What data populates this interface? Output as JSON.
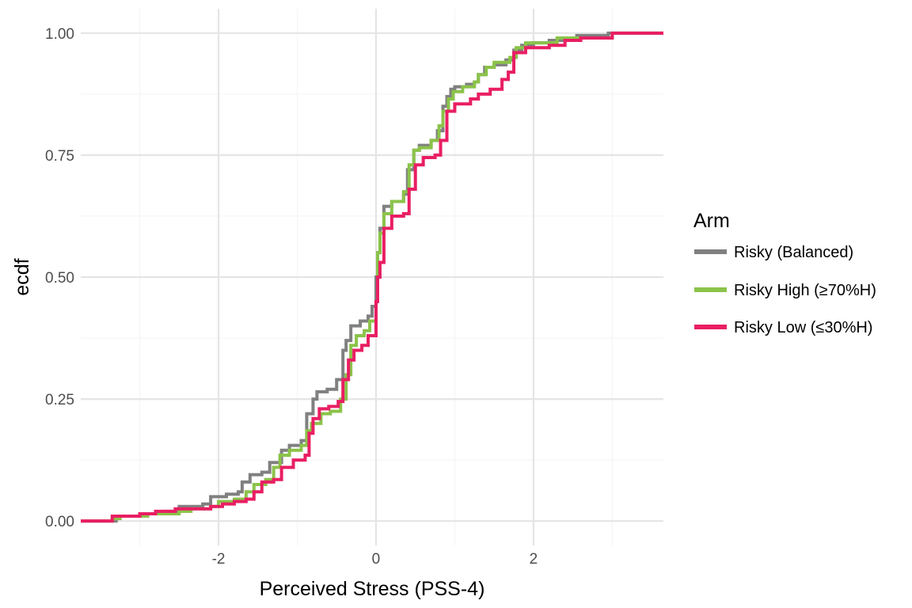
{
  "chart_data": {
    "type": "line",
    "subtype": "ecdf-step",
    "title": "",
    "xlabel": "Perceived Stress (PSS-4)",
    "ylabel": "ecdf",
    "xlim": [
      -3.75,
      3.65
    ],
    "ylim": [
      -0.05,
      1.05
    ],
    "x_ticks": [
      -2,
      0,
      2
    ],
    "x_tick_labels": [
      "-2",
      "0",
      "2"
    ],
    "y_ticks": [
      0,
      0.25,
      0.5,
      0.75,
      1
    ],
    "y_tick_labels": [
      "0.00",
      "0.25",
      "0.50",
      "0.75",
      "1.00"
    ],
    "x_minor_ticks": [
      -3,
      -1,
      1,
      3
    ],
    "y_minor_ticks": [
      0.125,
      0.375,
      0.625,
      0.875
    ],
    "grid": true,
    "legend": {
      "title": "Arm",
      "position": "right"
    },
    "series": [
      {
        "name": "Risky (Balanced)",
        "color": "#808080",
        "points": [
          [
            -3.75,
            0.0
          ],
          [
            -3.4,
            0.0
          ],
          [
            -3.3,
            0.01
          ],
          [
            -3.0,
            0.015
          ],
          [
            -2.7,
            0.02
          ],
          [
            -2.5,
            0.03
          ],
          [
            -2.2,
            0.035
          ],
          [
            -2.1,
            0.05
          ],
          [
            -1.9,
            0.055
          ],
          [
            -1.75,
            0.06
          ],
          [
            -1.7,
            0.08
          ],
          [
            -1.6,
            0.095
          ],
          [
            -1.45,
            0.1
          ],
          [
            -1.35,
            0.12
          ],
          [
            -1.2,
            0.145
          ],
          [
            -1.1,
            0.155
          ],
          [
            -0.95,
            0.165
          ],
          [
            -0.88,
            0.22
          ],
          [
            -0.8,
            0.25
          ],
          [
            -0.75,
            0.265
          ],
          [
            -0.62,
            0.27
          ],
          [
            -0.5,
            0.29
          ],
          [
            -0.42,
            0.35
          ],
          [
            -0.38,
            0.37
          ],
          [
            -0.32,
            0.4
          ],
          [
            -0.2,
            0.41
          ],
          [
            -0.1,
            0.42
          ],
          [
            -0.05,
            0.44
          ],
          [
            0.0,
            0.5
          ],
          [
            0.02,
            0.55
          ],
          [
            0.05,
            0.6
          ],
          [
            0.1,
            0.645
          ],
          [
            0.2,
            0.655
          ],
          [
            0.35,
            0.67
          ],
          [
            0.4,
            0.72
          ],
          [
            0.48,
            0.76
          ],
          [
            0.55,
            0.77
          ],
          [
            0.7,
            0.78
          ],
          [
            0.78,
            0.8
          ],
          [
            0.85,
            0.85
          ],
          [
            0.9,
            0.87
          ],
          [
            0.95,
            0.885
          ],
          [
            1.0,
            0.89
          ],
          [
            1.15,
            0.895
          ],
          [
            1.25,
            0.9
          ],
          [
            1.3,
            0.915
          ],
          [
            1.38,
            0.93
          ],
          [
            1.5,
            0.935
          ],
          [
            1.65,
            0.945
          ],
          [
            1.75,
            0.965
          ],
          [
            1.85,
            0.975
          ],
          [
            2.0,
            0.98
          ],
          [
            2.2,
            0.985
          ],
          [
            2.55,
            0.995
          ],
          [
            2.95,
            1.0
          ],
          [
            3.65,
            1.0
          ]
        ]
      },
      {
        "name": "Risky High (≥70%H)",
        "color": "#8bc34a",
        "points": [
          [
            -3.75,
            0.0
          ],
          [
            -3.4,
            0.0
          ],
          [
            -3.35,
            0.005
          ],
          [
            -3.25,
            0.01
          ],
          [
            -2.9,
            0.015
          ],
          [
            -2.5,
            0.02
          ],
          [
            -2.35,
            0.025
          ],
          [
            -2.1,
            0.03
          ],
          [
            -2.0,
            0.04
          ],
          [
            -1.8,
            0.045
          ],
          [
            -1.65,
            0.06
          ],
          [
            -1.55,
            0.075
          ],
          [
            -1.4,
            0.085
          ],
          [
            -1.3,
            0.11
          ],
          [
            -1.22,
            0.135
          ],
          [
            -1.1,
            0.145
          ],
          [
            -0.95,
            0.155
          ],
          [
            -0.88,
            0.185
          ],
          [
            -0.82,
            0.2
          ],
          [
            -0.7,
            0.22
          ],
          [
            -0.58,
            0.225
          ],
          [
            -0.45,
            0.25
          ],
          [
            -0.38,
            0.3
          ],
          [
            -0.32,
            0.36
          ],
          [
            -0.25,
            0.38
          ],
          [
            -0.15,
            0.39
          ],
          [
            -0.08,
            0.41
          ],
          [
            0.0,
            0.45
          ],
          [
            0.02,
            0.55
          ],
          [
            0.05,
            0.59
          ],
          [
            0.1,
            0.63
          ],
          [
            0.2,
            0.655
          ],
          [
            0.35,
            0.675
          ],
          [
            0.42,
            0.73
          ],
          [
            0.48,
            0.76
          ],
          [
            0.55,
            0.765
          ],
          [
            0.7,
            0.78
          ],
          [
            0.8,
            0.81
          ],
          [
            0.85,
            0.84
          ],
          [
            0.92,
            0.865
          ],
          [
            0.98,
            0.88
          ],
          [
            1.1,
            0.89
          ],
          [
            1.25,
            0.9
          ],
          [
            1.3,
            0.915
          ],
          [
            1.4,
            0.93
          ],
          [
            1.5,
            0.94
          ],
          [
            1.7,
            0.95
          ],
          [
            1.78,
            0.97
          ],
          [
            1.9,
            0.98
          ],
          [
            2.3,
            0.99
          ],
          [
            3.0,
            1.0
          ],
          [
            3.65,
            1.0
          ]
        ]
      },
      {
        "name": "Risky Low (≤30%H)",
        "color": "#e91e63",
        "points": [
          [
            -3.75,
            0.0
          ],
          [
            -3.45,
            0.0
          ],
          [
            -3.35,
            0.01
          ],
          [
            -3.0,
            0.015
          ],
          [
            -2.8,
            0.02
          ],
          [
            -2.55,
            0.025
          ],
          [
            -2.1,
            0.03
          ],
          [
            -1.95,
            0.035
          ],
          [
            -1.8,
            0.04
          ],
          [
            -1.65,
            0.045
          ],
          [
            -1.55,
            0.06
          ],
          [
            -1.45,
            0.08
          ],
          [
            -1.3,
            0.085
          ],
          [
            -1.2,
            0.11
          ],
          [
            -1.05,
            0.125
          ],
          [
            -0.9,
            0.135
          ],
          [
            -0.85,
            0.18
          ],
          [
            -0.8,
            0.21
          ],
          [
            -0.72,
            0.23
          ],
          [
            -0.6,
            0.235
          ],
          [
            -0.48,
            0.245
          ],
          [
            -0.42,
            0.29
          ],
          [
            -0.35,
            0.33
          ],
          [
            -0.28,
            0.35
          ],
          [
            -0.18,
            0.36
          ],
          [
            -0.1,
            0.38
          ],
          [
            0.0,
            0.45
          ],
          [
            0.02,
            0.5
          ],
          [
            0.05,
            0.53
          ],
          [
            0.1,
            0.6
          ],
          [
            0.2,
            0.625
          ],
          [
            0.35,
            0.63
          ],
          [
            0.42,
            0.68
          ],
          [
            0.5,
            0.73
          ],
          [
            0.6,
            0.745
          ],
          [
            0.75,
            0.75
          ],
          [
            0.82,
            0.78
          ],
          [
            0.9,
            0.84
          ],
          [
            1.0,
            0.855
          ],
          [
            1.2,
            0.865
          ],
          [
            1.3,
            0.875
          ],
          [
            1.45,
            0.885
          ],
          [
            1.6,
            0.905
          ],
          [
            1.68,
            0.92
          ],
          [
            1.75,
            0.96
          ],
          [
            1.9,
            0.97
          ],
          [
            2.2,
            0.975
          ],
          [
            2.4,
            0.985
          ],
          [
            2.6,
            0.99
          ],
          [
            3.0,
            1.0
          ],
          [
            3.65,
            1.0
          ]
        ]
      }
    ]
  }
}
